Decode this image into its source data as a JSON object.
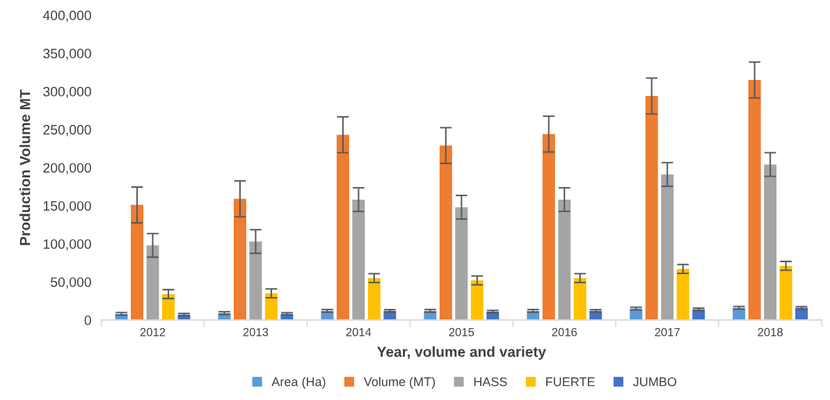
{
  "chart_data": {
    "type": "bar",
    "xlabel": "Year, volume and variety",
    "ylabel": "Production Volume MT",
    "categories": [
      "2012",
      "2013",
      "2014",
      "2015",
      "2016",
      "2017",
      "2018"
    ],
    "series": [
      {
        "name": "Area (Ha)",
        "color": "#5b9bd5",
        "values": [
          8000,
          9000,
          12000,
          12000,
          12000,
          15000,
          16000
        ],
        "errors": [
          1800,
          1800,
          1800,
          1800,
          1800,
          1800,
          1800
        ]
      },
      {
        "name": "Volume (MT)",
        "color": "#ed7d31",
        "values": [
          151000,
          159000,
          243000,
          229000,
          244000,
          294000,
          315000
        ],
        "errors": [
          23500,
          23500,
          23500,
          23500,
          23500,
          23500,
          23500
        ]
      },
      {
        "name": "HASS",
        "color": "#a5a5a5",
        "values": [
          98000,
          103000,
          158000,
          148000,
          158000,
          191000,
          204000
        ],
        "errors": [
          15500,
          15500,
          15500,
          15500,
          15500,
          15500,
          15500
        ]
      },
      {
        "name": "FUERTE",
        "color": "#ffc000",
        "values": [
          34000,
          35000,
          55000,
          52000,
          55000,
          67000,
          71000
        ],
        "errors": [
          5800,
          5800,
          5800,
          5800,
          5800,
          5800,
          5800
        ]
      },
      {
        "name": "JUMBO",
        "color": "#4472c4",
        "values": [
          7000,
          8000,
          12000,
          11000,
          12000,
          14000,
          16000
        ],
        "errors": [
          1600,
          1600,
          1600,
          1600,
          1600,
          1600,
          1600
        ]
      }
    ],
    "ylim": [
      0,
      400000
    ],
    "yticks": [
      0,
      {
        "value": 50000,
        "label": "50,000"
      },
      {
        "value": 100000,
        "label": "100,000"
      },
      {
        "value": 150000,
        "label": "150,000"
      },
      {
        "value": 200000,
        "label": "200,000"
      },
      {
        "value": 250000,
        "label": "250,000"
      },
      {
        "value": 300000,
        "label": "300,000"
      },
      {
        "value": 350000,
        "label": "350,000"
      },
      {
        "value": 400000,
        "label": "400,000"
      }
    ],
    "grid": false,
    "legend": "bottom"
  }
}
